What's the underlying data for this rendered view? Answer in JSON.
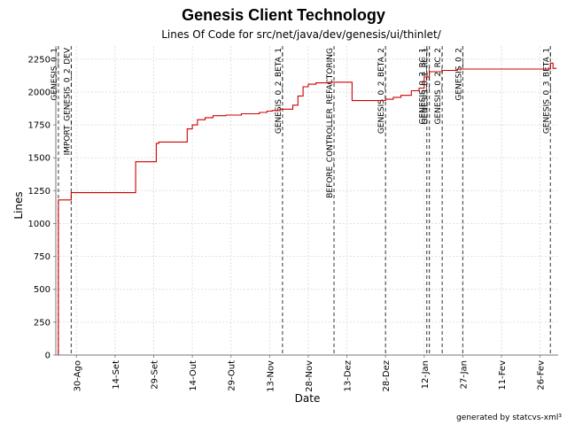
{
  "chart_data": {
    "type": "line",
    "title": "Genesis Client Technology",
    "subtitle": "Lines Of Code for src/net/java/dev/genesis/ui/thinlet/",
    "xlabel": "Date",
    "ylabel": "Lines",
    "footer": "generated by statcvs-xml³",
    "ylim": [
      0,
      2350
    ],
    "xlim": [
      "2003-08-22",
      "2004-03-04"
    ],
    "grid": true,
    "line_color": "#cc0000",
    "y_ticks": [
      {
        "value": 0,
        "label": "0"
      },
      {
        "value": 250,
        "label": "250"
      },
      {
        "value": 500,
        "label": "500"
      },
      {
        "value": 750,
        "label": "750"
      },
      {
        "value": 1000,
        "label": "1000"
      },
      {
        "value": 1250,
        "label": "1250"
      },
      {
        "value": 1500,
        "label": "1500"
      },
      {
        "value": 1750,
        "label": "1750"
      },
      {
        "value": 2000,
        "label": "2000"
      },
      {
        "value": 2250,
        "label": "2250"
      }
    ],
    "x_ticks": [
      {
        "date": "2003-08-30",
        "label": "30-Ago"
      },
      {
        "date": "2003-09-14",
        "label": "14-Set"
      },
      {
        "date": "2003-09-29",
        "label": "29-Set"
      },
      {
        "date": "2003-10-14",
        "label": "14-Out"
      },
      {
        "date": "2003-10-29",
        "label": "29-Out"
      },
      {
        "date": "2003-11-13",
        "label": "13-Nov"
      },
      {
        "date": "2003-11-28",
        "label": "28-Nov"
      },
      {
        "date": "2003-12-13",
        "label": "13-Dez"
      },
      {
        "date": "2003-12-28",
        "label": "28-Dez"
      },
      {
        "date": "2004-01-12",
        "label": "12-Jan"
      },
      {
        "date": "2004-01-27",
        "label": "27-Jan"
      },
      {
        "date": "2004-02-11",
        "label": "11-Fev"
      },
      {
        "date": "2004-02-26",
        "label": "26-Fev"
      }
    ],
    "events": [
      {
        "date": "2003-08-23",
        "label": "GENESIS_0_1"
      },
      {
        "date": "2003-08-28",
        "label": "IMPORT_GENESIS_0_2_DEV"
      },
      {
        "date": "2003-11-18",
        "label": "GENESIS_0_2_BETA_1"
      },
      {
        "date": "2003-12-08",
        "label": "BEFORE_CONTROLLER_REFACTORING"
      },
      {
        "date": "2003-12-28",
        "label": "GENESIS_0_2_BETA_2"
      },
      {
        "date": "2004-01-13",
        "label": "GENESIS_0_2_RC_1"
      },
      {
        "date": "2004-01-14",
        "label": "GENESIS_0_2_RC_1"
      },
      {
        "date": "2004-01-19",
        "label": "GENESIS_0_2_RC_2"
      },
      {
        "date": "2004-01-27",
        "label": "GENESIS_0_2"
      },
      {
        "date": "2004-03-01",
        "label": "GENESIS_0_3_BETA_1"
      }
    ],
    "series": [
      {
        "values": [
          {
            "x": "2003-08-23",
            "y": 0
          },
          {
            "x": "2003-08-23",
            "y": 1180
          },
          {
            "x": "2003-08-28",
            "y": 1235
          },
          {
            "x": "2003-09-22",
            "y": 1470
          },
          {
            "x": "2003-09-30",
            "y": 1610
          },
          {
            "x": "2003-10-01",
            "y": 1620
          },
          {
            "x": "2003-10-12",
            "y": 1720
          },
          {
            "x": "2003-10-14",
            "y": 1750
          },
          {
            "x": "2003-10-16",
            "y": 1790
          },
          {
            "x": "2003-10-19",
            "y": 1805
          },
          {
            "x": "2003-10-22",
            "y": 1820
          },
          {
            "x": "2003-10-27",
            "y": 1825
          },
          {
            "x": "2003-11-02",
            "y": 1835
          },
          {
            "x": "2003-11-09",
            "y": 1845
          },
          {
            "x": "2003-11-12",
            "y": 1855
          },
          {
            "x": "2003-11-14",
            "y": 1860
          },
          {
            "x": "2003-11-17",
            "y": 1870
          },
          {
            "x": "2003-11-22",
            "y": 1900
          },
          {
            "x": "2003-11-24",
            "y": 1970
          },
          {
            "x": "2003-11-26",
            "y": 2040
          },
          {
            "x": "2003-11-28",
            "y": 2060
          },
          {
            "x": "2003-12-01",
            "y": 2070
          },
          {
            "x": "2003-12-06",
            "y": 2075
          },
          {
            "x": "2003-12-15",
            "y": 1935
          },
          {
            "x": "2003-12-28",
            "y": 1945
          },
          {
            "x": "2003-12-31",
            "y": 1960
          },
          {
            "x": "2004-01-03",
            "y": 1975
          },
          {
            "x": "2004-01-07",
            "y": 2010
          },
          {
            "x": "2004-01-10",
            "y": 2030
          },
          {
            "x": "2004-01-12",
            "y": 2115
          },
          {
            "x": "2004-01-14",
            "y": 2155
          },
          {
            "x": "2004-01-19",
            "y": 2165
          },
          {
            "x": "2004-01-25",
            "y": 2175
          },
          {
            "x": "2004-03-01",
            "y": 2220
          },
          {
            "x": "2004-03-02",
            "y": 2180
          }
        ]
      }
    ]
  }
}
